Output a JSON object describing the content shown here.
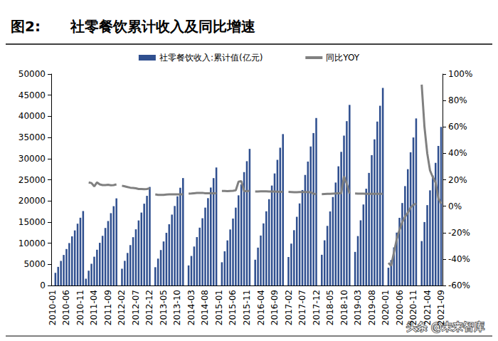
{
  "chart_data": {
    "type": "bar",
    "title": "图2:      社零餐饮累计收入及同比增速",
    "categories": [
      "2010-01",
      null,
      null,
      null,
      null,
      "2010-06",
      null,
      null,
      null,
      null,
      "2010-11",
      null,
      null,
      null,
      null,
      "2011-04",
      null,
      null,
      null,
      null,
      "2011-09",
      null,
      null,
      null,
      null,
      "2012-02",
      null,
      null,
      null,
      null,
      "2012-07",
      null,
      null,
      null,
      null,
      "2012-12",
      null,
      null,
      null,
      null,
      "2013-05",
      null,
      null,
      null,
      null,
      "2013-10",
      null,
      null,
      null,
      null,
      "2014-03",
      null,
      null,
      null,
      null,
      "2014-08",
      null,
      null,
      null,
      null,
      "2015-01",
      null,
      null,
      null,
      null,
      "2015-06",
      null,
      null,
      null,
      null,
      "2015-11",
      null,
      null,
      null,
      null,
      "2016-04",
      null,
      null,
      null,
      null,
      "2016-09",
      null,
      null,
      null,
      null,
      "2017-02",
      null,
      null,
      null,
      null,
      "2017-07",
      null,
      null,
      null,
      null,
      "2017-12",
      null,
      null,
      null,
      null,
      "2018-05",
      null,
      null,
      null,
      null,
      "2018-10",
      null,
      null,
      null,
      null,
      "2019-03",
      null,
      null,
      null,
      null,
      "2019-08",
      null,
      null,
      null,
      null,
      "2020-01",
      null,
      null,
      null,
      null,
      "2020-06",
      null,
      null,
      null,
      null,
      "2020-11",
      null,
      null,
      null,
      null,
      "2021-04",
      null,
      null,
      null,
      null,
      "2021-09"
    ],
    "series": [
      {
        "name": "社零餐饮收入:累计值(亿元)",
        "type": "bar",
        "color": "#2f4f8f",
        "values": [
          null,
          2990,
          4400,
          5810,
          7220,
          8620,
          10030,
          11620,
          13020,
          14610,
          16020,
          17600,
          1600,
          3500,
          5150,
          6800,
          8450,
          10090,
          11740,
          13600,
          15240,
          17100,
          18750,
          20600,
          null,
          3960,
          5830,
          7690,
          9550,
          11420,
          13280,
          15380,
          17240,
          19340,
          21200,
          23300,
          null,
          4320,
          6350,
          8380,
          10410,
          12450,
          14480,
          16760,
          18800,
          21080,
          23110,
          25400,
          null,
          4740,
          6980,
          9210,
          11440,
          13670,
          15900,
          18410,
          20650,
          23160,
          25390,
          27900,
          null,
          5490,
          8080,
          10660,
          13240,
          15830,
          18410,
          21320,
          23900,
          26810,
          29390,
          32300,
          null,
          6090,
          8950,
          11810,
          14680,
          17540,
          20410,
          23630,
          26490,
          29710,
          32580,
          35800,
          null,
          6730,
          9900,
          13070,
          16240,
          19400,
          22570,
          26140,
          29300,
          32870,
          36040,
          39600,
          null,
          7260,
          10680,
          14090,
          17510,
          20920,
          24340,
          28180,
          31600,
          35440,
          38860,
          42700,
          null,
          7940,
          11680,
          15410,
          19150,
          22880,
          26620,
          30820,
          34560,
          38760,
          42500,
          46700,
          null,
          4200,
          6000,
          9000,
          12500,
          16000,
          19500,
          23500,
          27500,
          31500,
          35000,
          39500,
          null,
          10500,
          15000,
          19000,
          22500,
          26000,
          29000,
          33000,
          37500
        ]
      },
      {
        "name": "同比YOY",
        "type": "line",
        "color": "#808080",
        "axis": "y2",
        "values": [
          null,
          null,
          null,
          null,
          null,
          null,
          null,
          null,
          null,
          null,
          null,
          null,
          null,
          18,
          17.5,
          15,
          18,
          16.5,
          16,
          16,
          16.2,
          15.8,
          16,
          16.5,
          null,
          15.5,
          15,
          14.5,
          14,
          13.8,
          13.5,
          13,
          13,
          12.8,
          13,
          13.6,
          null,
          9,
          8.6,
          8.5,
          8.6,
          8.8,
          8.9,
          9,
          9,
          9,
          9,
          9,
          null,
          9.5,
          9.6,
          9.8,
          10,
          10,
          10.1,
          9.8,
          9.8,
          9.8,
          9.7,
          9.7,
          null,
          11.5,
          11.5,
          11.4,
          11.5,
          11.6,
          12,
          18.5,
          19,
          11.5,
          11.3,
          11.7,
          null,
          11.1,
          11.1,
          11.2,
          11.2,
          11.2,
          11.1,
          11.1,
          11.1,
          11,
          10.9,
          10.8,
          null,
          10.8,
          10.7,
          10.6,
          10.6,
          10.7,
          10.7,
          10.7,
          10.7,
          10.5,
          9.5,
          9,
          null,
          9.1,
          9.2,
          9.3,
          9.4,
          9.5,
          9.6,
          9.7,
          9.8,
          22.5,
          17,
          9.5,
          null,
          9.6,
          9.5,
          9.5,
          9.5,
          9.4,
          9.3,
          9.3,
          9.3,
          9.3,
          9.3,
          9.4,
          null,
          -43,
          -45,
          -35,
          -25,
          -18,
          -12,
          -8,
          -5,
          -1,
          1,
          2,
          null,
          92,
          60,
          40,
          27,
          22,
          18,
          6,
          2
        ]
      }
    ],
    "ylim": [
      0,
      50000
    ],
    "yticks": [
      0,
      5000,
      10000,
      15000,
      20000,
      25000,
      30000,
      35000,
      40000,
      45000,
      50000
    ],
    "y2lim": [
      -60,
      100
    ],
    "y2ticks": [
      {
        "value": -60,
        "label": "-60%"
      },
      {
        "value": -40,
        "label": "-40%"
      },
      {
        "value": -20,
        "label": "-20%"
      },
      {
        "value": 0,
        "label": "0%"
      },
      {
        "value": 20,
        "label": "20%"
      },
      {
        "value": 40,
        "label": "40%"
      },
      {
        "value": 60,
        "label": "60%"
      },
      {
        "value": 80,
        "label": "80%"
      },
      {
        "value": 100,
        "label": "100%"
      }
    ],
    "grid": false,
    "legend": "top",
    "annotations": [
      "头条 @未来智库"
    ]
  }
}
